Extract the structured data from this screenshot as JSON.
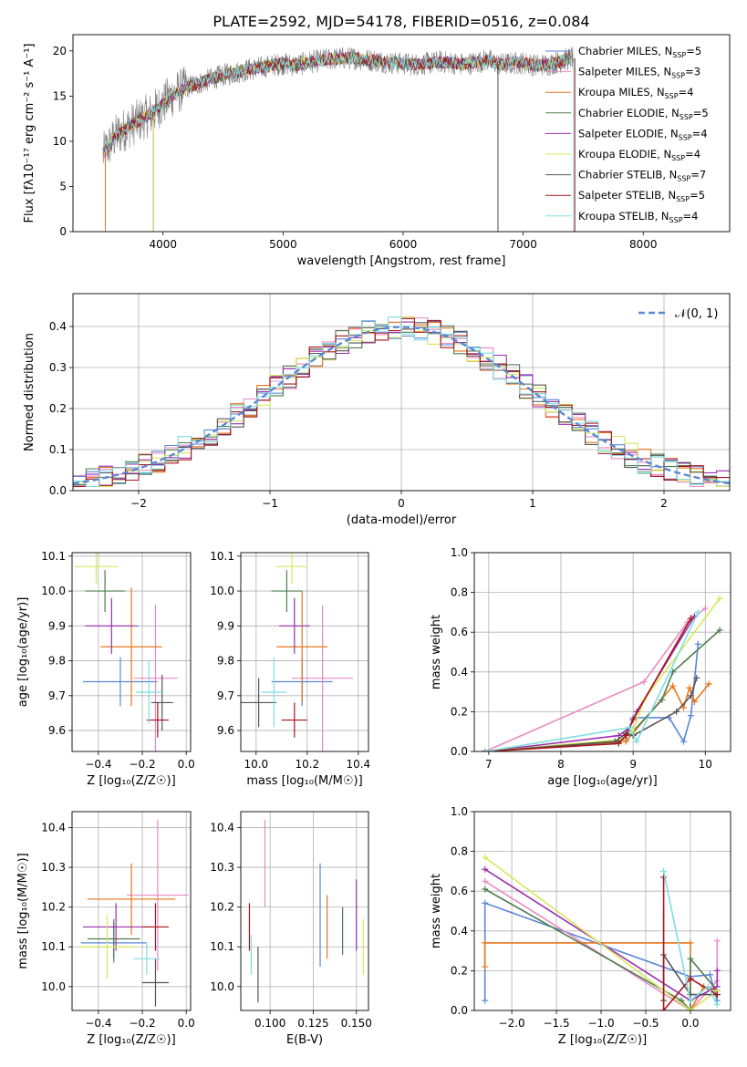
{
  "figure": {
    "title": "PLATE=2592, MJD=54178, FIBERID=0516, z=0.084"
  },
  "series": [
    {
      "name": "Chabrier MILES",
      "nssp": "5",
      "color": "#5b87d6"
    },
    {
      "name": "Salpeter MILES",
      "nssp": "3",
      "color": "#e88bc4"
    },
    {
      "name": "Kroupa MILES",
      "nssp": "4",
      "color": "#e8761e"
    },
    {
      "name": "Chabrier ELODIE",
      "nssp": "5",
      "color": "#4f7d4f"
    },
    {
      "name": "Salpeter ELODIE",
      "nssp": "4",
      "color": "#9b2fae"
    },
    {
      "name": "Kroupa ELODIE",
      "nssp": "4",
      "color": "#d6e85a"
    },
    {
      "name": "Chabrier STELIB",
      "nssp": "7",
      "color": "#555555"
    },
    {
      "name": "Salpeter STELIB",
      "nssp": "5",
      "color": "#a8131b"
    },
    {
      "name": "Kroupa STELIB",
      "nssp": "4",
      "color": "#7fdde0"
    }
  ],
  "nssp_prefix": "N",
  "nssp_sub": "SSP",
  "chart_data": [
    {
      "id": "spectrum",
      "type": "line",
      "xlabel": "wavelength [Angstrom, rest frame]",
      "ylabel": "Flux [fλ10⁻¹⁷ erg cm⁻² s⁻¹ A⁻¹]",
      "xlim": [
        3250,
        8720
      ],
      "ylim": [
        0,
        21.8
      ],
      "xticks": [
        4000,
        5000,
        6000,
        7000,
        8000
      ],
      "yticks": [
        0,
        5,
        10,
        15,
        20
      ],
      "legend": "right",
      "continuum": {
        "x": [
          3500,
          3600,
          3700,
          3800,
          3900,
          4000,
          4100,
          4200,
          4300,
          4400,
          4500,
          4600,
          4700,
          4800,
          4900,
          5000,
          5100,
          5200,
          5300,
          5400,
          5500,
          5600,
          5700,
          5800,
          5900,
          6000,
          6100,
          6200,
          6300,
          6400,
          6500,
          6600,
          6700,
          6800,
          6900,
          7000,
          7100,
          7200,
          7300,
          7400
        ],
        "y": [
          8.5,
          10.5,
          11.5,
          12.3,
          13.0,
          14.2,
          15.3,
          16.0,
          16.4,
          16.9,
          17.3,
          17.6,
          17.9,
          18.1,
          18.4,
          18.6,
          18.4,
          18.7,
          18.9,
          19.1,
          19.2,
          19.2,
          19.0,
          18.9,
          18.7,
          18.6,
          18.5,
          18.6,
          18.8,
          18.7,
          18.5,
          18.7,
          19.0,
          18.5,
          18.6,
          18.7,
          18.4,
          18.5,
          18.8,
          19.2
        ]
      }
    },
    {
      "id": "residuals",
      "type": "histogram",
      "xlabel": "(data-model)/error",
      "ylabel": "Normed distribution",
      "xlim": [
        -2.5,
        2.5
      ],
      "ylim": [
        0,
        0.48
      ],
      "xticks": [
        -2,
        -1,
        0,
        1,
        2
      ],
      "yticks": [
        0.0,
        0.1,
        0.2,
        0.3,
        0.4
      ],
      "legend": "top-right",
      "reference": {
        "name": "𝒩(0, 1)",
        "color": "#5b87d6"
      },
      "bin_width": 0.1
    },
    {
      "id": "age-vs-Z",
      "type": "errorbar",
      "xlabel": "Z [log₁₀(Z/Z☉)]",
      "ylabel": "age  [log₁₀(age/yr)]",
      "xlim": [
        -0.52,
        0.02
      ],
      "ylim": [
        9.54,
        10.11
      ],
      "xticks": [
        -0.4,
        -0.2,
        0.0
      ],
      "yticks": [
        9.6,
        9.7,
        9.8,
        9.9,
        10.0,
        10.1
      ],
      "points": [
        {
          "x": -0.3,
          "y": 9.74,
          "xerr": 0.17,
          "yerr": 0.07,
          "s": 0
        },
        {
          "x": -0.14,
          "y": 9.75,
          "xerr": 0.1,
          "yerr": 0.21,
          "s": 1
        },
        {
          "x": -0.25,
          "y": 9.84,
          "xerr": 0.14,
          "yerr": 0.17,
          "s": 2
        },
        {
          "x": -0.37,
          "y": 10.0,
          "xerr": 0.09,
          "yerr": 0.06,
          "s": 3
        },
        {
          "x": -0.34,
          "y": 9.9,
          "xerr": 0.12,
          "yerr": 0.08,
          "s": 4
        },
        {
          "x": -0.41,
          "y": 10.07,
          "xerr": 0.1,
          "yerr": 0.05,
          "s": 5
        },
        {
          "x": -0.11,
          "y": 9.68,
          "xerr": 0.05,
          "yerr": 0.08,
          "s": 6
        },
        {
          "x": -0.13,
          "y": 9.63,
          "xerr": 0.05,
          "yerr": 0.05,
          "s": 7
        },
        {
          "x": -0.17,
          "y": 9.71,
          "xerr": 0.06,
          "yerr": 0.09,
          "s": 8
        }
      ]
    },
    {
      "id": "age-vs-mass",
      "type": "errorbar",
      "xlabel": "mass [log₁₀(M/M☉)]",
      "ylabel": "",
      "xlim": [
        9.94,
        10.44
      ],
      "ylim": [
        9.54,
        10.11
      ],
      "xticks": [
        10.0,
        10.2,
        10.4
      ],
      "yticks": [
        9.6,
        9.7,
        9.8,
        9.9,
        10.0,
        10.1
      ],
      "points": [
        {
          "x": 10.18,
          "y": 9.74,
          "xerr": 0.12,
          "yerr": 0.07,
          "s": 0
        },
        {
          "x": 10.26,
          "y": 9.75,
          "xerr": 0.12,
          "yerr": 0.21,
          "s": 1
        },
        {
          "x": 10.18,
          "y": 9.84,
          "xerr": 0.1,
          "yerr": 0.16,
          "s": 2
        },
        {
          "x": 10.12,
          "y": 10.0,
          "xerr": 0.06,
          "yerr": 0.06,
          "s": 3
        },
        {
          "x": 10.15,
          "y": 9.9,
          "xerr": 0.06,
          "yerr": 0.08,
          "s": 4
        },
        {
          "x": 10.14,
          "y": 10.07,
          "xerr": 0.06,
          "yerr": 0.05,
          "s": 5
        },
        {
          "x": 10.01,
          "y": 9.68,
          "xerr": 0.07,
          "yerr": 0.07,
          "s": 6
        },
        {
          "x": 10.15,
          "y": 9.63,
          "xerr": 0.05,
          "yerr": 0.05,
          "s": 7
        },
        {
          "x": 10.07,
          "y": 9.71,
          "xerr": 0.05,
          "yerr": 0.1,
          "s": 8
        }
      ]
    },
    {
      "id": "mass-weight-vs-age",
      "type": "line",
      "xlabel": "age  [log₁₀(age/yr)]",
      "ylabel": "mass weight",
      "xlim": [
        6.8,
        10.35
      ],
      "ylim": [
        0,
        1
      ],
      "xticks": [
        7,
        8,
        9,
        10
      ],
      "yticks": [
        0.0,
        0.2,
        0.4,
        0.6,
        0.8,
        1.0
      ],
      "series": [
        {
          "s": 0,
          "x": [
            6.95,
            8.9,
            9.0,
            9.5,
            9.7,
            9.8,
            9.9
          ],
          "y": [
            0.0,
            0.06,
            0.17,
            0.17,
            0.05,
            0.18,
            0.54
          ]
        },
        {
          "s": 1,
          "x": [
            6.95,
            9.15,
            9.75,
            10.0
          ],
          "y": [
            0.0,
            0.35,
            0.65,
            0.72
          ]
        },
        {
          "s": 2,
          "x": [
            6.95,
            8.9,
            9.55,
            9.7,
            9.78,
            9.85,
            10.05
          ],
          "y": [
            0.0,
            0.05,
            0.33,
            0.22,
            0.32,
            0.25,
            0.34
          ]
        },
        {
          "s": 3,
          "x": [
            6.95,
            8.8,
            9.0,
            9.4,
            9.55,
            10.2
          ],
          "y": [
            0.0,
            0.05,
            0.1,
            0.26,
            0.4,
            0.61
          ]
        },
        {
          "s": 4,
          "x": [
            6.95,
            8.8,
            8.95,
            9.05,
            9.85
          ],
          "y": [
            0.0,
            0.08,
            0.12,
            0.2,
            0.68
          ]
        },
        {
          "s": 5,
          "x": [
            6.95,
            8.85,
            9.0,
            9.15,
            10.2
          ],
          "y": [
            0.0,
            0.06,
            0.1,
            0.26,
            0.77
          ]
        },
        {
          "s": 6,
          "x": [
            6.95,
            8.75,
            8.9,
            9.0,
            9.6,
            9.8,
            9.88
          ],
          "y": [
            0.0,
            0.05,
            0.09,
            0.08,
            0.2,
            0.28,
            0.37
          ]
        },
        {
          "s": 7,
          "x": [
            6.95,
            8.8,
            8.9,
            9.0,
            9.8
          ],
          "y": [
            0.0,
            0.04,
            0.08,
            0.16,
            0.67
          ]
        },
        {
          "s": 8,
          "x": [
            6.95,
            8.95,
            9.05,
            9.9
          ],
          "y": [
            0.0,
            0.12,
            0.05,
            0.7
          ]
        }
      ]
    },
    {
      "id": "mass-vs-Z",
      "type": "errorbar",
      "xlabel": "Z [log₁₀(Z/Z☉)]",
      "ylabel": "mass [log₁₀(M/M☉)]",
      "xlim": [
        -0.52,
        0.02
      ],
      "ylim": [
        9.94,
        10.44
      ],
      "xticks": [
        -0.4,
        -0.2,
        0.0
      ],
      "yticks": [
        10.0,
        10.1,
        10.2,
        10.3,
        10.4
      ],
      "points": [
        {
          "x": -0.33,
          "y": 10.11,
          "xerr": 0.15,
          "yerr": 0.05,
          "s": 0
        },
        {
          "x": -0.13,
          "y": 10.23,
          "xerr": 0.14,
          "yerr": 0.19,
          "s": 1
        },
        {
          "x": -0.25,
          "y": 10.22,
          "xerr": 0.2,
          "yerr": 0.09,
          "s": 2
        },
        {
          "x": -0.33,
          "y": 10.12,
          "xerr": 0.12,
          "yerr": 0.05,
          "s": 3
        },
        {
          "x": -0.32,
          "y": 10.15,
          "xerr": 0.15,
          "yerr": 0.06,
          "s": 4
        },
        {
          "x": -0.36,
          "y": 10.1,
          "xerr": 0.13,
          "yerr": 0.08,
          "s": 5
        },
        {
          "x": -0.14,
          "y": 10.01,
          "xerr": 0.06,
          "yerr": 0.06,
          "s": 6
        },
        {
          "x": -0.14,
          "y": 10.15,
          "xerr": 0.06,
          "yerr": 0.06,
          "s": 7
        },
        {
          "x": -0.18,
          "y": 10.07,
          "xerr": 0.06,
          "yerr": 0.04,
          "s": 8
        }
      ]
    },
    {
      "id": "mass-vs-ebv",
      "type": "errorbar",
      "xlabel": "E(B-V)",
      "ylabel": "",
      "xlim": [
        0.083,
        0.157
      ],
      "ylim": [
        9.94,
        10.44
      ],
      "xticks": [
        0.1,
        0.125,
        0.15
      ],
      "yticks": [
        10.0,
        10.1,
        10.2,
        10.3,
        10.4
      ],
      "points": [
        {
          "x": 0.129,
          "y": 10.18,
          "xerr": 0,
          "yerr": 0.13,
          "s": 0
        },
        {
          "x": 0.097,
          "y": 10.31,
          "xerr": 0,
          "yerr": 0.11,
          "s": 1
        },
        {
          "x": 0.133,
          "y": 10.15,
          "xerr": 0,
          "yerr": 0.08,
          "s": 2
        },
        {
          "x": 0.142,
          "y": 10.14,
          "xerr": 0,
          "yerr": 0.06,
          "s": 3
        },
        {
          "x": 0.15,
          "y": 10.18,
          "xerr": 0,
          "yerr": 0.09,
          "s": 4
        },
        {
          "x": 0.154,
          "y": 10.1,
          "xerr": 0,
          "yerr": 0.07,
          "s": 5
        },
        {
          "x": 0.093,
          "y": 10.03,
          "xerr": 0,
          "yerr": 0.07,
          "s": 6
        },
        {
          "x": 0.088,
          "y": 10.15,
          "xerr": 0,
          "yerr": 0.06,
          "s": 7
        },
        {
          "x": 0.089,
          "y": 10.08,
          "xerr": 0,
          "yerr": 0.05,
          "s": 8
        }
      ]
    },
    {
      "id": "mass-weight-vs-Z",
      "type": "line",
      "xlabel": "Z [log₁₀(Z/Z☉)]",
      "ylabel": "mass weight",
      "xlim": [
        -2.42,
        0.45
      ],
      "ylim": [
        0,
        1
      ],
      "xticks": [
        -2.0,
        -1.5,
        -1.0,
        -0.5,
        0.0
      ],
      "yticks": [
        0.0,
        0.2,
        0.4,
        0.6,
        0.8,
        1.0
      ],
      "series": [
        {
          "s": 0,
          "x": [
            -2.3,
            -2.3,
            0.0,
            0.22,
            0.3
          ],
          "y": [
            0.05,
            0.54,
            0.17,
            0.18,
            0.05
          ]
        },
        {
          "s": 1,
          "x": [
            -2.3,
            0.0,
            0.3,
            0.3
          ],
          "y": [
            0.65,
            0.0,
            0.15,
            0.35
          ]
        },
        {
          "s": 2,
          "x": [
            -2.3,
            -2.3,
            0.0,
            0.0,
            0.15,
            0.3
          ],
          "y": [
            0.22,
            0.34,
            0.34,
            0.0,
            0.12,
            0.1
          ]
        },
        {
          "s": 3,
          "x": [
            -2.3,
            -0.1,
            0.0,
            0.0,
            0.3
          ],
          "y": [
            0.61,
            0.05,
            0.0,
            0.26,
            0.1
          ]
        },
        {
          "s": 4,
          "x": [
            -2.3,
            0.0,
            0.3,
            0.3
          ],
          "y": [
            0.71,
            0.05,
            0.12,
            0.2
          ]
        },
        {
          "s": 5,
          "x": [
            -2.3,
            0.0,
            0.3
          ],
          "y": [
            0.77,
            0.0,
            0.1
          ]
        },
        {
          "s": 6,
          "x": [
            -0.3,
            -0.3,
            0.0,
            0.3
          ],
          "y": [
            0.05,
            0.28,
            0.08,
            0.08
          ]
        },
        {
          "s": 7,
          "x": [
            -0.3,
            -0.3,
            0.0,
            0.3
          ],
          "y": [
            0.67,
            0.0,
            0.16,
            0.08
          ]
        },
        {
          "s": 8,
          "x": [
            -0.3,
            0.0,
            0.2,
            0.3
          ],
          "y": [
            0.7,
            0.05,
            0.12,
            0.03
          ]
        }
      ]
    }
  ]
}
